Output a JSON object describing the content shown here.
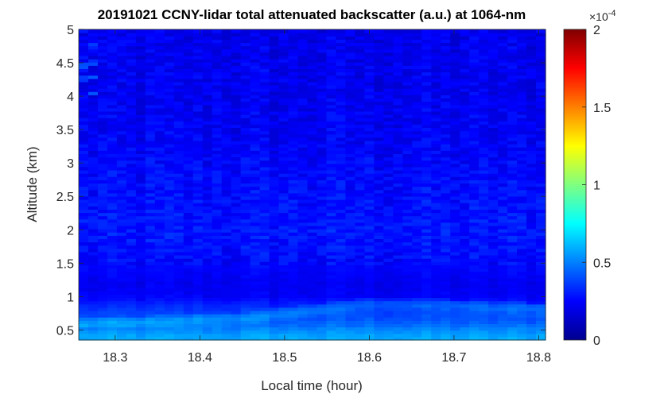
{
  "chart_data": {
    "type": "heatmap",
    "title": "20191021 CCNY-lidar total attenuated backscatter (a.u.) at 1064-nm",
    "xlabel": "Local time (hour)",
    "ylabel": "Altitude (km)",
    "xlim": [
      18.257,
      18.808
    ],
    "ylim": [
      0.35,
      5
    ],
    "x_ticks": [
      "18.3",
      "18.4",
      "18.5",
      "18.6",
      "18.7",
      "18.8"
    ],
    "y_ticks": [
      "0.5",
      "1",
      "1.5",
      "2",
      "2.5",
      "3",
      "3.5",
      "4",
      "4.5",
      "5"
    ],
    "colormap": "jet",
    "colorbar": {
      "range": [
        0,
        0.0002
      ],
      "ticks": [
        "0",
        "0.5",
        "1",
        "1.5",
        "2"
      ],
      "multiplier": "×10",
      "exponent": "-4"
    },
    "profile": [
      {
        "altitude_km": 0.4,
        "value": 5.8e-05
      },
      {
        "altitude_km": 0.5,
        "value": 5.2e-05
      },
      {
        "altitude_km": 0.6,
        "value": 4.4e-05
      },
      {
        "altitude_km": 0.7,
        "value": 4e-05
      },
      {
        "altitude_km": 0.8,
        "value": 3.6e-05
      },
      {
        "altitude_km": 0.9,
        "value": 3e-05
      },
      {
        "altitude_km": 1.0,
        "value": 2.4e-05
      },
      {
        "altitude_km": 1.2,
        "value": 2.2e-05
      },
      {
        "altitude_km": 1.5,
        "value": 2.6e-05
      },
      {
        "altitude_km": 2.0,
        "value": 2.9e-05
      },
      {
        "altitude_km": 2.5,
        "value": 2.7e-05
      },
      {
        "altitude_km": 3.0,
        "value": 2.5e-05
      },
      {
        "altitude_km": 3.5,
        "value": 2.3e-05
      },
      {
        "altitude_km": 4.0,
        "value": 2.2e-05
      },
      {
        "altitude_km": 4.5,
        "value": 2.2e-05
      },
      {
        "altitude_km": 5.0,
        "value": 2.1e-05
      }
    ],
    "boundary_layer_top": [
      {
        "time_h": 18.26,
        "altitude_km": 0.6
      },
      {
        "time_h": 18.45,
        "altitude_km": 0.68
      },
      {
        "time_h": 18.6,
        "altitude_km": 0.9
      },
      {
        "time_h": 18.7,
        "altitude_km": 0.88
      },
      {
        "time_h": 18.81,
        "altitude_km": 0.82
      }
    ]
  }
}
